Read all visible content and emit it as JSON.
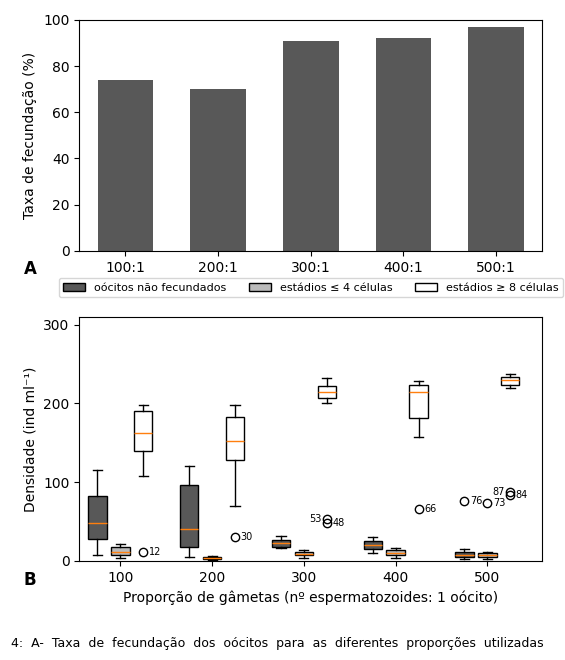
{
  "chart_data": [
    {
      "type": "bar",
      "categories": [
        "100:1",
        "200:1",
        "300:1",
        "400:1",
        "500:1"
      ],
      "values": [
        74,
        70,
        91,
        92,
        97
      ],
      "color": "#585858",
      "y_label": "Taxa de fecundação (%)",
      "ylim": [
        0,
        100
      ],
      "yticks": [
        0,
        20,
        40,
        60,
        80,
        100
      ],
      "annotations": [
        {
          "text": "A"
        }
      ]
    },
    {
      "type": "box",
      "x": [
        100,
        200,
        300,
        400,
        500
      ],
      "xlim": [
        55,
        560
      ],
      "xticks": [
        100,
        200,
        300,
        400,
        500
      ],
      "ylim": [
        0,
        310
      ],
      "yticks": [
        0,
        100,
        200,
        300
      ],
      "x_label": "Proporção de gâmetas (nº espermatozoides: 1 oócito)",
      "y_label": "Densidade (ind ml⁻¹)",
      "legend": "upper center",
      "data_labels": true,
      "series": [
        {
          "name": "oócitos não fecundados",
          "color": "#585858",
          "values": [
            {
              "q1": 28,
              "median": 48,
              "q3": 82,
              "whislo": 8,
              "whishi": 115,
              "outliers": []
            },
            {
              "q1": 18,
              "median": 40,
              "q3": 97,
              "whislo": 5,
              "whishi": 120,
              "outliers": []
            },
            {
              "q1": 18,
              "median": 23,
              "q3": 27,
              "whislo": 16,
              "whishi": 32,
              "outliers": []
            },
            {
              "q1": 15,
              "median": 20,
              "q3": 26,
              "whislo": 10,
              "whishi": 30,
              "outliers": []
            },
            {
              "q1": 5,
              "median": 8,
              "q3": 12,
              "whislo": 3,
              "whishi": 15,
              "outliers": [
                76
              ]
            }
          ]
        },
        {
          "name": "estádios ≤ 4 células",
          "color": "#bbbbbb",
          "values": [
            {
              "q1": 8,
              "median": 12,
              "q3": 18,
              "whislo": 4,
              "whishi": 22,
              "outliers": []
            },
            {
              "q1": 2,
              "median": 4,
              "q3": 5,
              "whislo": 1,
              "whishi": 6,
              "outliers": []
            },
            {
              "q1": 7,
              "median": 9,
              "q3": 12,
              "whislo": 4,
              "whishi": 14,
              "outliers": []
            },
            {
              "q1": 7,
              "median": 10,
              "q3": 14,
              "whislo": 4,
              "whishi": 17,
              "outliers": []
            },
            {
              "q1": 5,
              "median": 8,
              "q3": 10,
              "whislo": 3,
              "whishi": 12,
              "outliers": [
                73
              ]
            }
          ]
        },
        {
          "name": "estádios ≥ 8 células",
          "color": "#ffffff",
          "values": [
            {
              "q1": 140,
              "median": 163,
              "q3": 190,
              "whislo": 108,
              "whishi": 198,
              "outliers": [
                12
              ]
            },
            {
              "q1": 128,
              "median": 152,
              "q3": 183,
              "whislo": 70,
              "whishi": 198,
              "outliers": [
                30
              ]
            },
            {
              "q1": 207,
              "median": 215,
              "q3": 222,
              "whislo": 200,
              "whishi": 232,
              "outliers": [
                48,
                53
              ]
            },
            {
              "q1": 182,
              "median": 215,
              "q3": 223,
              "whislo": 158,
              "whishi": 228,
              "outliers": [
                66
              ]
            },
            {
              "q1": 224,
              "median": 230,
              "q3": 234,
              "whislo": 220,
              "whishi": 238,
              "outliers": [
                84,
                87
              ]
            }
          ]
        }
      ],
      "annotations": [
        {
          "text": "B"
        },
        {
          "text": "4:  A-  Taxa  de  fecundação  dos  oócitos  para  as  diferentes  proporções  utilizadas"
        }
      ]
    }
  ]
}
